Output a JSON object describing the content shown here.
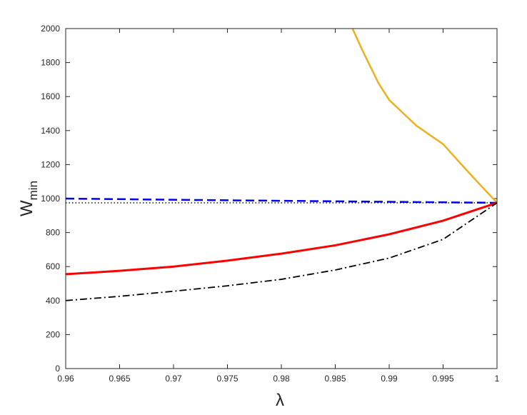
{
  "chart_data": {
    "type": "line",
    "xlabel": "λ",
    "ylabel": "W",
    "ylabel_subscript": "min",
    "xlim": [
      0.96,
      1
    ],
    "ylim": [
      0,
      2000
    ],
    "xticks": [
      0.96,
      0.965,
      0.97,
      0.975,
      0.98,
      0.985,
      0.99,
      0.995,
      1
    ],
    "yticks": [
      0,
      200,
      400,
      600,
      800,
      1000,
      1200,
      1400,
      1600,
      1800,
      2000
    ],
    "grid": false,
    "series": [
      {
        "color": "#edb120",
        "style": "solid",
        "width": 2.5,
        "x": [
          0.9866,
          0.9875,
          0.989,
          0.99,
          0.9925,
          0.995,
          0.9975,
          1
        ],
        "values": [
          2000,
          1874,
          1680,
          1580,
          1430,
          1320,
          1145,
          975
        ]
      },
      {
        "color": "#0000ff",
        "style": "dashed",
        "width": 2.5,
        "x": [
          0.96,
          0.97,
          0.98,
          0.99,
          1
        ],
        "values": [
          1000,
          993,
          987,
          981,
          975
        ]
      },
      {
        "color": "#000000",
        "style": "dotted",
        "width": 1.3,
        "x": [
          0.96,
          1
        ],
        "values": [
          975,
          975
        ]
      },
      {
        "color": "#ff0000",
        "style": "solid",
        "width": 3,
        "x": [
          0.96,
          0.965,
          0.97,
          0.975,
          0.98,
          0.985,
          0.99,
          0.995,
          1
        ],
        "values": [
          555,
          575,
          600,
          635,
          676,
          725,
          790,
          870,
          975
        ]
      },
      {
        "color": "#000000",
        "style": "dashdot",
        "width": 1.8,
        "x": [
          0.96,
          0.965,
          0.97,
          0.975,
          0.98,
          0.985,
          0.99,
          0.995,
          1
        ],
        "values": [
          400,
          425,
          455,
          487,
          525,
          580,
          650,
          760,
          975
        ]
      }
    ]
  }
}
